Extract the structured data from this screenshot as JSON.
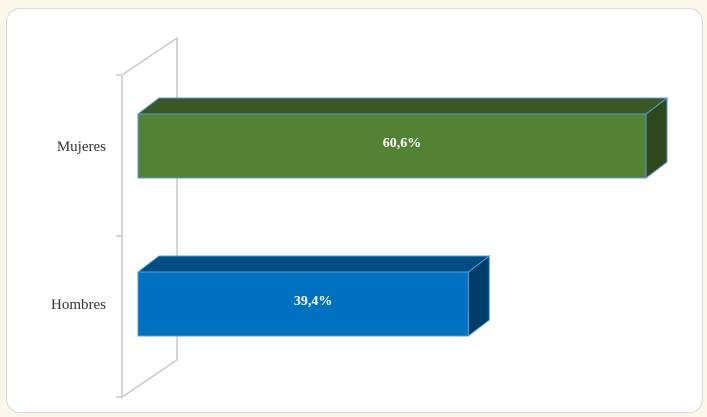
{
  "chart_data": {
    "type": "bar",
    "orientation": "horizontal",
    "style": "3d",
    "categories": [
      "Mujeres",
      "Hombres"
    ],
    "values": [
      60.6,
      39.4
    ],
    "data_labels": [
      "60,6%",
      "39,4%"
    ],
    "colors": [
      "#548235",
      "#0070c0"
    ],
    "xlim": [
      0,
      60.6
    ],
    "title": "",
    "xlabel": "",
    "ylabel": "",
    "grid": false,
    "legend": "none"
  }
}
